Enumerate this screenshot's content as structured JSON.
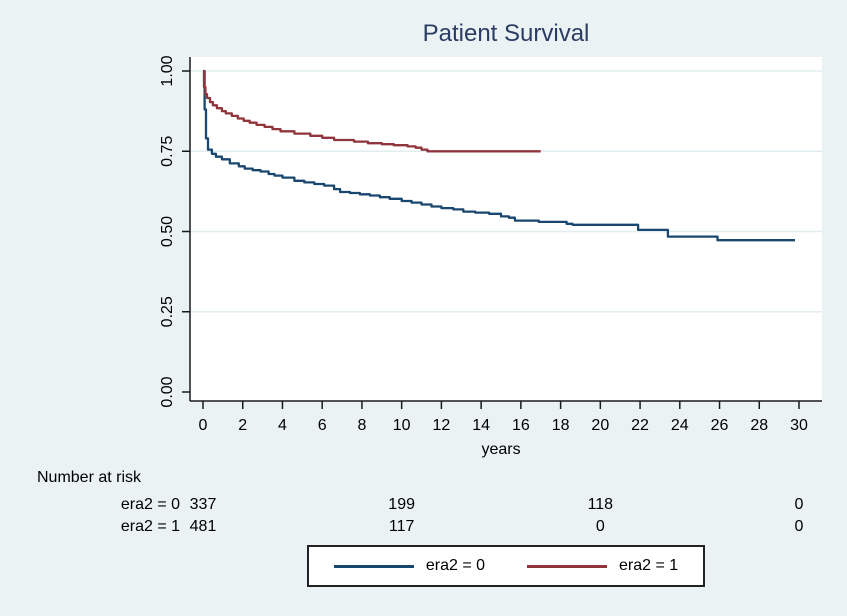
{
  "title": "Patient Survival",
  "colors": {
    "background": "#EAF2F3",
    "plot_background": "#FFFFFF",
    "grid": "#E2EDEF",
    "axis": "#1A1A1A",
    "title_color": "#2B3C63",
    "text": "#000000",
    "era2_0": "#1A476F",
    "era2_1": "#90353B"
  },
  "chart_data": {
    "type": "line",
    "subtype": "kaplan-meier-step",
    "title": "Patient Survival",
    "xlabel": "years",
    "ylabel": "",
    "xlim": [
      0,
      30
    ],
    "ylim": [
      0.0,
      1.0
    ],
    "x_ticks": [
      0,
      2,
      4,
      6,
      8,
      10,
      12,
      14,
      16,
      18,
      20,
      22,
      24,
      26,
      28,
      30
    ],
    "y_ticks": [
      0.0,
      0.25,
      0.5,
      0.75,
      1.0
    ],
    "y_tick_labels": [
      "0.00",
      "0.25",
      "0.50",
      "0.75",
      "1.00"
    ],
    "grid": "horizontal",
    "legend_position": "bottom",
    "series": [
      {
        "name": "era2 = 0",
        "color": "#1A476F",
        "points": [
          [
            0,
            1.0
          ],
          [
            0.08,
            0.88
          ],
          [
            0.15,
            0.79
          ],
          [
            0.25,
            0.755
          ],
          [
            0.45,
            0.742
          ],
          [
            0.65,
            0.733
          ],
          [
            0.95,
            0.725
          ],
          [
            1.35,
            0.712
          ],
          [
            1.8,
            0.703
          ],
          [
            2.1,
            0.696
          ],
          [
            2.5,
            0.691
          ],
          [
            2.9,
            0.687
          ],
          [
            3.3,
            0.679
          ],
          [
            3.6,
            0.674
          ],
          [
            4.0,
            0.668
          ],
          [
            4.6,
            0.658
          ],
          [
            5.1,
            0.653
          ],
          [
            5.6,
            0.648
          ],
          [
            6.1,
            0.643
          ],
          [
            6.6,
            0.632
          ],
          [
            6.9,
            0.623
          ],
          [
            7.4,
            0.62
          ],
          [
            7.9,
            0.616
          ],
          [
            8.4,
            0.612
          ],
          [
            8.9,
            0.607
          ],
          [
            9.4,
            0.602
          ],
          [
            10.0,
            0.595
          ],
          [
            10.5,
            0.59
          ],
          [
            11.0,
            0.584
          ],
          [
            11.5,
            0.578
          ],
          [
            12.0,
            0.573
          ],
          [
            12.6,
            0.569
          ],
          [
            13.1,
            0.562
          ],
          [
            13.7,
            0.559
          ],
          [
            14.4,
            0.555
          ],
          [
            15.0,
            0.547
          ],
          [
            15.4,
            0.543
          ],
          [
            15.7,
            0.534
          ],
          [
            16.9,
            0.53
          ],
          [
            18.3,
            0.524
          ],
          [
            18.6,
            0.521
          ],
          [
            21.9,
            0.505
          ],
          [
            23.4,
            0.484
          ],
          [
            25.9,
            0.473
          ],
          [
            29.8,
            0.473
          ]
        ]
      },
      {
        "name": "era2 = 1",
        "color": "#90353B",
        "points": [
          [
            0,
            1.0
          ],
          [
            0.05,
            0.95
          ],
          [
            0.12,
            0.928
          ],
          [
            0.2,
            0.916
          ],
          [
            0.35,
            0.903
          ],
          [
            0.5,
            0.893
          ],
          [
            0.7,
            0.884
          ],
          [
            0.95,
            0.875
          ],
          [
            1.15,
            0.868
          ],
          [
            1.45,
            0.86
          ],
          [
            1.75,
            0.852
          ],
          [
            2.05,
            0.845
          ],
          [
            2.35,
            0.839
          ],
          [
            2.7,
            0.832
          ],
          [
            3.1,
            0.826
          ],
          [
            3.5,
            0.819
          ],
          [
            3.9,
            0.812
          ],
          [
            4.6,
            0.805
          ],
          [
            5.4,
            0.798
          ],
          [
            6.0,
            0.792
          ],
          [
            6.6,
            0.785
          ],
          [
            7.6,
            0.78
          ],
          [
            8.3,
            0.775
          ],
          [
            9.0,
            0.772
          ],
          [
            9.6,
            0.769
          ],
          [
            10.3,
            0.765
          ],
          [
            10.7,
            0.761
          ],
          [
            11.0,
            0.755
          ],
          [
            11.3,
            0.75
          ],
          [
            17.0,
            0.75
          ]
        ]
      }
    ]
  },
  "risk_table": {
    "heading": "Number at risk",
    "time_points": [
      0,
      10,
      20,
      30
    ],
    "rows": [
      {
        "label": "era2 = 0",
        "values": [
          "337",
          "199",
          "118",
          "0"
        ]
      },
      {
        "label": "era2 = 1",
        "values": [
          "481",
          "117",
          "0",
          "0"
        ]
      }
    ]
  },
  "legend": {
    "items": [
      {
        "label": "era2 = 0",
        "color": "#1A476F"
      },
      {
        "label": "era2 = 1",
        "color": "#90353B"
      }
    ]
  }
}
